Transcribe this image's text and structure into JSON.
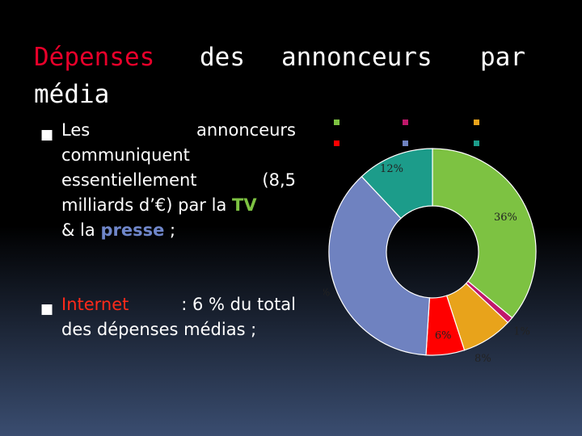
{
  "title": {
    "words": [
      "Dépenses",
      "des",
      "annonceurs",
      "par",
      "média"
    ]
  },
  "bullets": [
    {
      "lines": [
        [
          "Les",
          "annonceurs"
        ],
        [
          "communiquent"
        ],
        [
          "essentiellement",
          "(8,5"
        ],
        [
          "milliards d’€) par la",
          "TV"
        ],
        [
          "& la",
          "presse",
          ";"
        ]
      ]
    },
    {
      "highlight": "Internet",
      "rest_line1": ": 6 % du total",
      "line2": "des dépenses médias ;"
    }
  ],
  "chart_data": {
    "type": "pie",
    "style": "donut",
    "legend": "top (unlabeled color swatches)",
    "slices": [
      {
        "value": 36,
        "label": "36%",
        "color": "#7dc242"
      },
      {
        "value": 1,
        "label": "1%",
        "color": "#c0186b"
      },
      {
        "value": 8,
        "label": "8%",
        "color": "#e8a31b"
      },
      {
        "value": 6,
        "label": "6%",
        "color": "#ff0000"
      },
      {
        "value": 37,
        "label": "37%",
        "color": "#6f82c0"
      },
      {
        "value": 12,
        "label": "12%",
        "color": "#1c9c8a"
      }
    ],
    "legend_swatches": [
      "#7dc242",
      "#c0186b",
      "#e8a31b",
      "#ff0000",
      "#6f82c0",
      "#1c9c8a"
    ]
  }
}
